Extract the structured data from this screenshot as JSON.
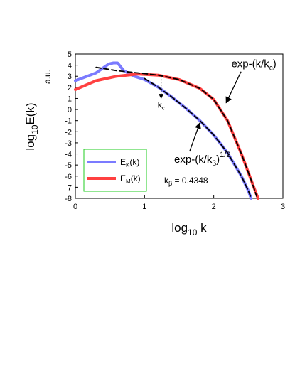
{
  "chart_data": {
    "type": "line",
    "xlabel": {
      "main": "log",
      "sub": "10",
      "tail": " k"
    },
    "ylabel": {
      "main": "log",
      "sub": "10",
      "tail": "E(k)"
    },
    "yunit": "a.u.",
    "xlim": [
      0,
      3
    ],
    "ylim": [
      -8,
      5
    ],
    "xticks": [
      0,
      1,
      2,
      3
    ],
    "yticks": [
      5,
      4,
      3,
      2,
      1,
      0,
      -1,
      -2,
      -3,
      -4,
      -5,
      -6,
      -7,
      -8
    ],
    "series": [
      {
        "name": "E_K(k)",
        "legend": {
          "main": "E",
          "sub": "K",
          "tail": "(k)"
        },
        "color": "#7b7bff",
        "x": [
          0,
          0.3,
          0.48,
          0.55,
          0.61,
          0.7,
          0.85,
          1.0,
          1.2,
          1.4,
          1.6,
          1.8,
          2.0,
          2.2,
          2.4,
          2.5,
          2.54
        ],
        "y": [
          2.6,
          3.3,
          4.1,
          4.2,
          4.2,
          3.5,
          3.0,
          2.7,
          2.0,
          1.1,
          0.1,
          -1.0,
          -2.3,
          -3.9,
          -6.0,
          -7.3,
          -8.0
        ]
      },
      {
        "name": "E_M(k)",
        "legend": {
          "main": "E",
          "sub": "M",
          "tail": "(k)"
        },
        "color": "#ff4040",
        "x": [
          0,
          0.3,
          0.6,
          0.9,
          1.2,
          1.5,
          1.8,
          2.0,
          2.2,
          2.4,
          2.55,
          2.64
        ],
        "y": [
          1.8,
          2.6,
          3.0,
          3.2,
          3.1,
          2.7,
          1.9,
          0.9,
          -1.0,
          -4.0,
          -6.5,
          -8.0
        ]
      },
      {
        "name": "exp-(k/k_c) fit",
        "color": "#000000",
        "dashed": true,
        "x": [
          0.3,
          0.6,
          0.9,
          1.2,
          1.5,
          1.8,
          2.0,
          2.2,
          2.4,
          2.55,
          2.62
        ],
        "y": [
          3.8,
          3.5,
          3.3,
          3.1,
          2.7,
          1.9,
          0.9,
          -1.0,
          -4.0,
          -6.5,
          -7.8
        ]
      },
      {
        "name": "exp-(k/k_beta)^(1/2) fit",
        "color": "#000000",
        "dashed": true,
        "x": [
          1.0,
          1.2,
          1.4,
          1.6,
          1.8,
          2.0,
          2.2,
          2.4,
          2.5,
          2.53
        ],
        "y": [
          2.8,
          2.0,
          1.1,
          0.1,
          -1.0,
          -2.3,
          -3.9,
          -6.0,
          -7.3,
          -7.8
        ]
      }
    ],
    "annotations": {
      "kc_marker": {
        "main": "k",
        "sub": "c",
        "x": 1.24,
        "y_from": 3.0,
        "y_to": 1.0
      },
      "exp_kc": {
        "text": "exp-(k/k",
        "sub": "c",
        "tail": ")",
        "x": 2.58,
        "y": 3.8,
        "arrow_to": {
          "x": 2.18,
          "y": 0.6
        }
      },
      "exp_kbeta": {
        "text": "exp-(k/k",
        "sub": "β",
        "tail": ")",
        "sup": "1/2",
        "x": 1.22,
        "y": -4.8,
        "arrow_to": {
          "x": 1.8,
          "y": -1.2
        }
      },
      "kbeta_value": {
        "main": "k",
        "sub": "β",
        "tail": " = 0.4348"
      }
    },
    "legend_placement": "lower-left",
    "grid": false
  }
}
